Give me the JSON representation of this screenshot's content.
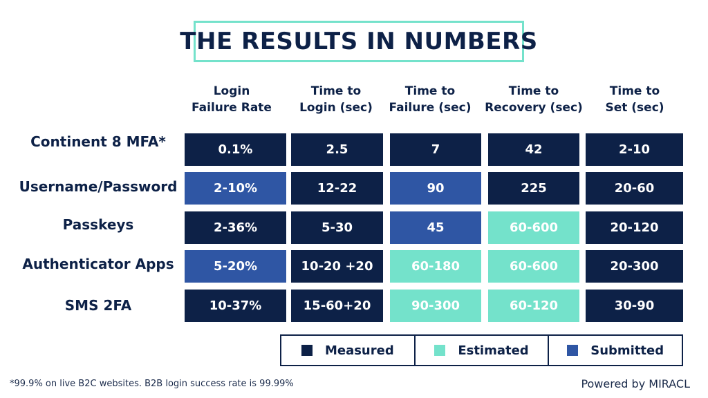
{
  "title": "THE RESULTS IN NUMBERS",
  "colors": {
    "measured": "#0d2147",
    "estimated": "#74e2cb",
    "submitted": "#2f56a4"
  },
  "columns": [
    "Login\nFailure Rate",
    "Time to\nLogin (sec)",
    "Time to\nFailure (sec)",
    "Time to\nRecovery (sec)",
    "Time to\nSet (sec)"
  ],
  "rows": [
    {
      "label": "Continent 8 MFA*",
      "cells": [
        {
          "value": "0.1%",
          "type": "measured"
        },
        {
          "value": "2.5",
          "type": "measured"
        },
        {
          "value": "7",
          "type": "measured"
        },
        {
          "value": "42",
          "type": "measured"
        },
        {
          "value": "2-10",
          "type": "measured"
        }
      ]
    },
    {
      "label": "Username/Password",
      "cells": [
        {
          "value": "2-10%",
          "type": "submitted"
        },
        {
          "value": "12-22",
          "type": "measured"
        },
        {
          "value": "90",
          "type": "submitted"
        },
        {
          "value": "225",
          "type": "measured"
        },
        {
          "value": "20-60",
          "type": "measured"
        }
      ]
    },
    {
      "label": "Passkeys",
      "cells": [
        {
          "value": "2-36%",
          "type": "measured"
        },
        {
          "value": "5-30",
          "type": "measured"
        },
        {
          "value": "45",
          "type": "submitted"
        },
        {
          "value": "60-600",
          "type": "estimated"
        },
        {
          "value": "20-120",
          "type": "measured"
        }
      ]
    },
    {
      "label": "Authenticator Apps",
      "cells": [
        {
          "value": "5-20%",
          "type": "submitted"
        },
        {
          "value": "10-20 +20",
          "type": "measured"
        },
        {
          "value": "60-180",
          "type": "estimated"
        },
        {
          "value": "60-600",
          "type": "estimated"
        },
        {
          "value": "20-300",
          "type": "measured"
        }
      ]
    },
    {
      "label": "SMS 2FA",
      "cells": [
        {
          "value": "10-37%",
          "type": "measured"
        },
        {
          "value": "15-60+20",
          "type": "measured"
        },
        {
          "value": "90-300",
          "type": "estimated"
        },
        {
          "value": "60-120",
          "type": "estimated"
        },
        {
          "value": "30-90",
          "type": "measured"
        }
      ]
    }
  ],
  "legend": [
    {
      "label": "Measured",
      "type": "measured"
    },
    {
      "label": "Estimated",
      "type": "estimated"
    },
    {
      "label": "Submitted",
      "type": "submitted"
    }
  ],
  "footnote": "*99.9% on live B2C websites. B2B login success rate is 99.99%",
  "powered_by": "Powered by MIRACL"
}
